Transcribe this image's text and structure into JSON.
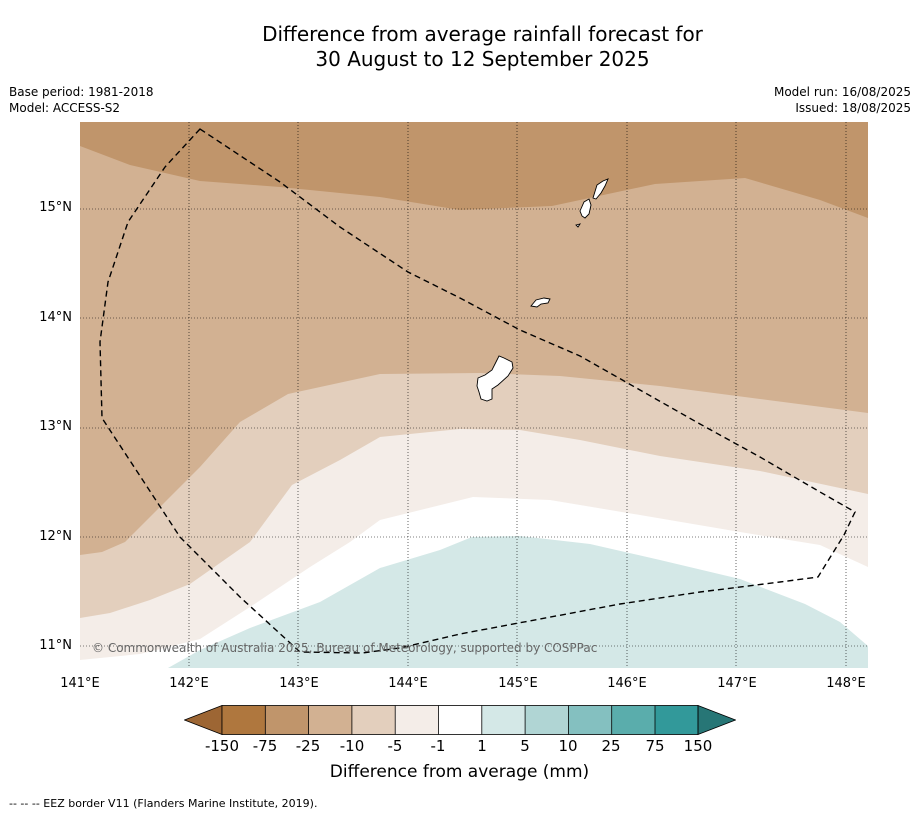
{
  "title": {
    "line1": "Difference from average rainfall forecast for",
    "line2": "30 August to 12 September 2025"
  },
  "meta": {
    "base_period": "Base period: 1981-2018",
    "model": "Model: ACCESS-S2",
    "model_run": "Model run: 16/08/2025",
    "issued": "Issued: 18/08/2025"
  },
  "map": {
    "copyright": "© Commonwealth of Australia 2025, Bureau of Meteorology, supported by COSPPac",
    "lat_labels": [
      "15°N",
      "14°N",
      "13°N",
      "12°N",
      "11°N"
    ],
    "lon_labels": [
      "141°E",
      "142°E",
      "143°E",
      "144°E",
      "145°E",
      "146°E",
      "147°E",
      "148°E"
    ],
    "band_colors": {
      "m75": "#c0956b",
      "m25": "#d2b192",
      "m10": "#e3cfbd",
      "m5": "#f4ede8",
      "m1": "#ffffff",
      "p1": "#d4e8e7"
    },
    "eez_border_color": "#000000"
  },
  "colorbar": {
    "ticks": [
      "-150",
      "-75",
      "-25",
      "-10",
      "-5",
      "-1",
      "1",
      "5",
      "10",
      "25",
      "75",
      "150"
    ],
    "colors": [
      "#9d6634",
      "#af773e",
      "#c0956b",
      "#d2b192",
      "#e3cfbd",
      "#f4ede8",
      "#ffffff",
      "#d4e8e7",
      "#b0d5d4",
      "#84c0c0",
      "#5aadac",
      "#32999a",
      "#277676"
    ],
    "label": "Difference from average (mm)"
  },
  "footnote": "--  --  -- EEZ border V11 (Flanders Marine Institute, 2019)."
}
